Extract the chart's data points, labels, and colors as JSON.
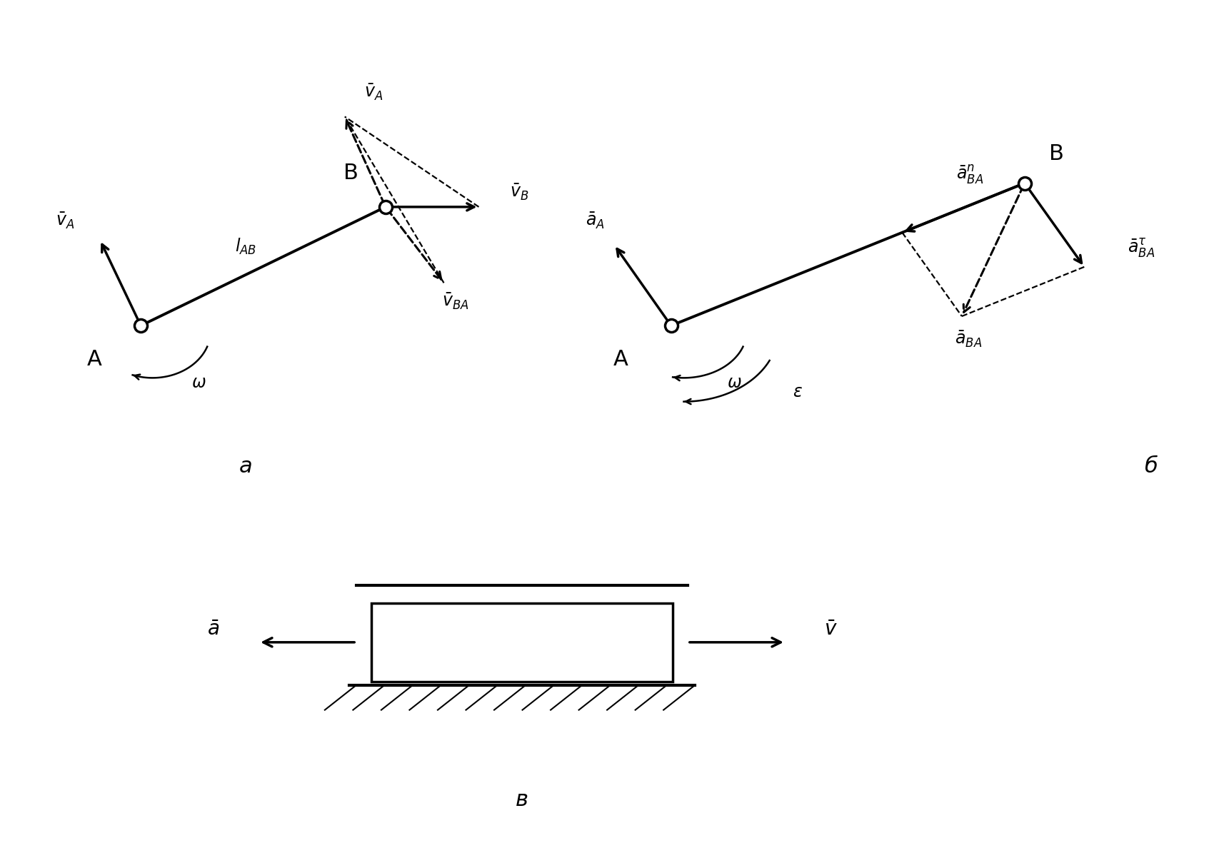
{
  "background": "#ffffff",
  "fig_a_label": "а",
  "fig_b_label": "б",
  "fig_c_label": "в"
}
